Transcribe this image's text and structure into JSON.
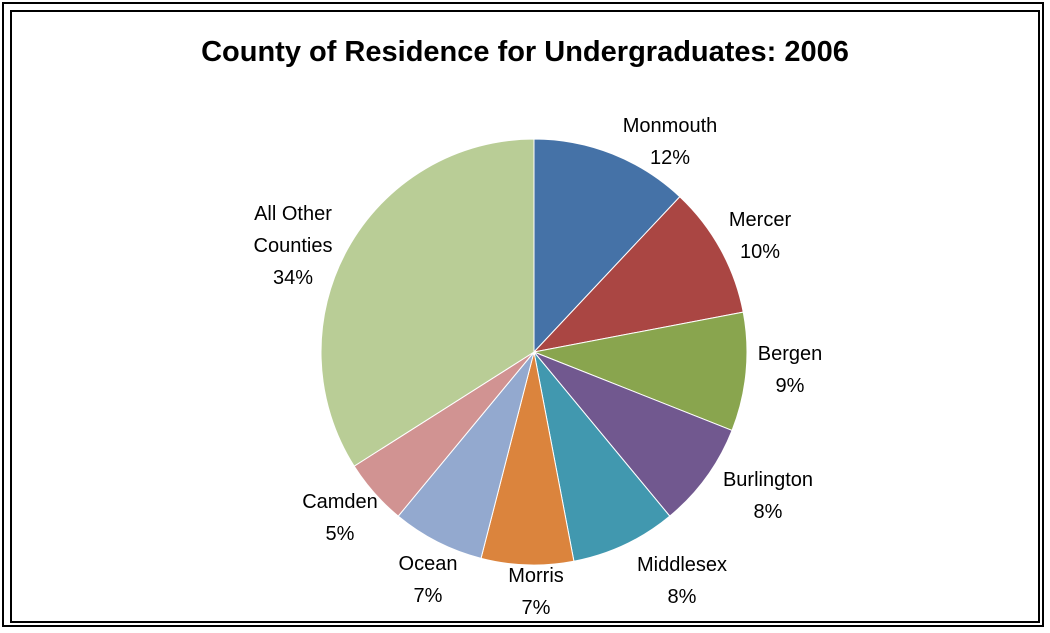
{
  "chart_data": {
    "type": "pie",
    "title": "County of Residence for Undergraduates: 2006",
    "start_angle_deg": 0,
    "direction": "clockwise",
    "slices": [
      {
        "label": [
          "Monmouth"
        ],
        "value": 12,
        "value_label": "12%",
        "color": "#4572A7"
      },
      {
        "label": [
          "Mercer"
        ],
        "value": 10,
        "value_label": "10%",
        "color": "#AA4643"
      },
      {
        "label": [
          "Bergen"
        ],
        "value": 9,
        "value_label": "9%",
        "color": "#89A54E"
      },
      {
        "label": [
          "Burlington"
        ],
        "value": 8,
        "value_label": "8%",
        "color": "#71588F"
      },
      {
        "label": [
          "Middlesex"
        ],
        "value": 8,
        "value_label": "8%",
        "color": "#4198AF"
      },
      {
        "label": [
          "Morris"
        ],
        "value": 7,
        "value_label": "7%",
        "color": "#DB843D"
      },
      {
        "label": [
          "Ocean"
        ],
        "value": 7,
        "value_label": "7%",
        "color": "#93A9CF"
      },
      {
        "label": [
          "Camden"
        ],
        "value": 5,
        "value_label": "5%",
        "color": "#D19392"
      },
      {
        "label": [
          "All Other",
          "Counties"
        ],
        "value": 34,
        "value_label": "34%",
        "color": "#B9CD96"
      }
    ]
  }
}
